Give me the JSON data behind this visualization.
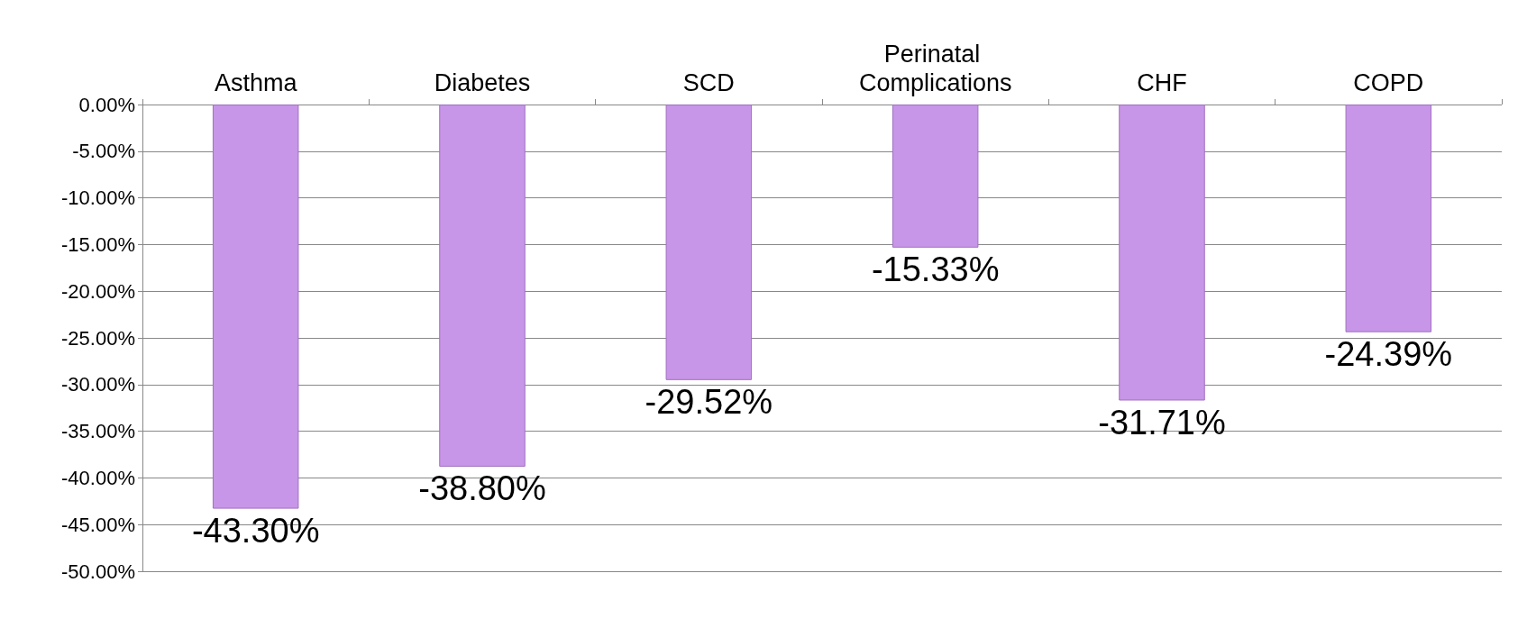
{
  "chart_data": {
    "type": "bar",
    "categories": [
      "Asthma",
      "Diabetes",
      "SCD",
      "Perinatal Complications",
      "CHF",
      "COPD"
    ],
    "values": [
      -43.3,
      -38.8,
      -29.52,
      -15.33,
      -31.71,
      -24.39
    ],
    "value_labels": [
      "-43.30%",
      "-38.80%",
      "-29.52%",
      "-15.33%",
      "-31.71%",
      "-24.39%"
    ],
    "color": "#c896e8",
    "ylim": [
      -50,
      0
    ],
    "yticks": [
      {
        "value": 0,
        "label": "0.00%"
      },
      {
        "value": -5,
        "label": "-5.00%"
      },
      {
        "value": -10,
        "label": "-10.00%"
      },
      {
        "value": -15,
        "label": "-15.00%"
      },
      {
        "value": -20,
        "label": "-20.00%"
      },
      {
        "value": -25,
        "label": "-25.00%"
      },
      {
        "value": -30,
        "label": "-30.00%"
      },
      {
        "value": -35,
        "label": "-35.00%"
      },
      {
        "value": -40,
        "label": "-40.00%"
      },
      {
        "value": -45,
        "label": "-45.00%"
      },
      {
        "value": -50,
        "label": "-50.00%"
      }
    ],
    "grid": "y"
  }
}
